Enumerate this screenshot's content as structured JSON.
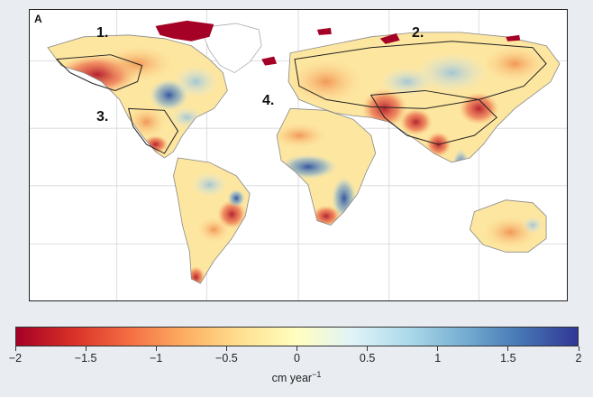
{
  "panel_letter": "A",
  "region_labels": [
    "1.",
    "2.",
    "3.",
    "4."
  ],
  "colorbar": {
    "min": -2,
    "max": 2,
    "ticks": [
      "−2",
      "−1.5",
      "−1",
      "−0.5",
      "0",
      "0.5",
      "1",
      "1.5",
      "2"
    ],
    "unit_text": "cm year",
    "unit_exponent": "−1",
    "colors": [
      "#a50026",
      "#d73027",
      "#f46d43",
      "#fdae61",
      "#fee090",
      "#ffffbf",
      "#e0f3f8",
      "#abd9e9",
      "#74add1",
      "#4575b4",
      "#313695"
    ]
  }
}
